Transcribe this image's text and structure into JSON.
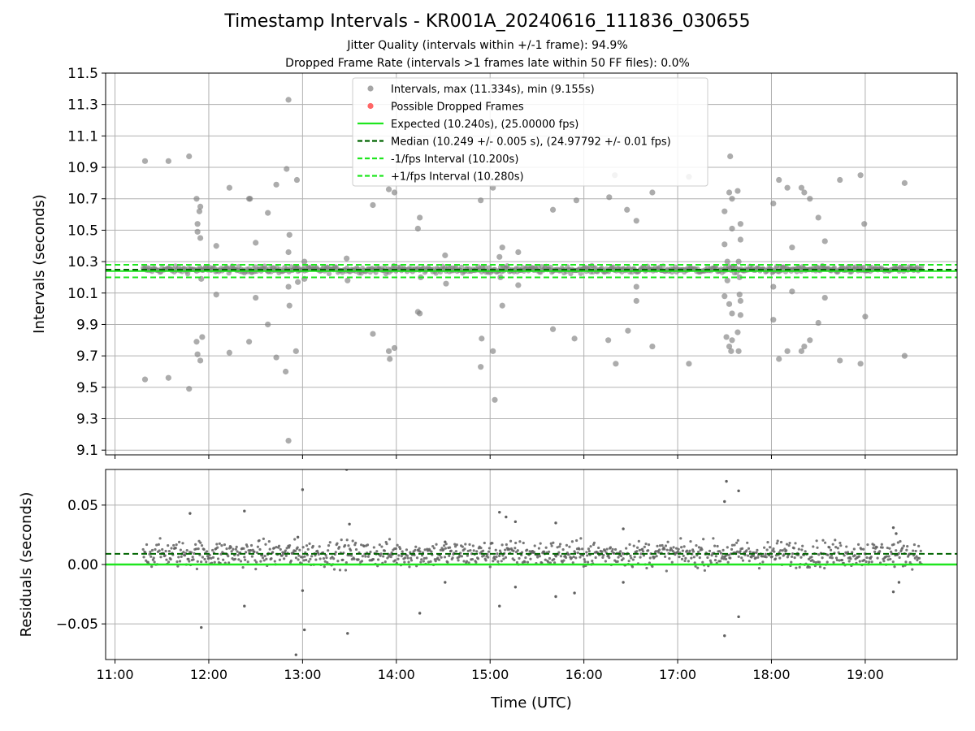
{
  "figure": {
    "title": "Timestamp Intervals - KR001A_20240616_111836_030655",
    "subtitle_1": "Jitter Quality (intervals within +/-1 frame): 94.9%",
    "subtitle_2": "Dropped Frame Rate (intervals >1 frames late within 50 FF files): 0.0%",
    "xlabel": "Time (UTC)"
  },
  "colors": {
    "points": "#808080",
    "dropped": "#ff4d4d",
    "expected": "#1ee61e",
    "median": "#006400",
    "bounds": "#1ee61e",
    "grid": "#b0b0b0"
  },
  "chart_data": [
    {
      "type": "scatter",
      "ylabel": "Intervals (seconds)",
      "xlim_hours": [
        10.9,
        19.98
      ],
      "ylim": [
        9.07,
        11.5
      ],
      "x_ticks": [
        "11:00",
        "12:00",
        "13:00",
        "14:00",
        "15:00",
        "16:00",
        "17:00",
        "18:00",
        "19:00"
      ],
      "y_ticks": [
        "9.1",
        "9.3",
        "9.5",
        "9.7",
        "9.9",
        "10.1",
        "10.3",
        "10.5",
        "10.7",
        "10.9",
        "11.1",
        "11.3",
        "11.5"
      ],
      "grid": true,
      "legend_position": "upper-center",
      "legend": [
        {
          "label": "Intervals, max (11.334s), min (9.155s)",
          "kind": "marker",
          "color": "#a6a6a6"
        },
        {
          "label": "Possible Dropped Frames",
          "kind": "marker",
          "color": "#ff6666"
        },
        {
          "label": "Expected (10.240s), (25.00000 fps)",
          "kind": "solid",
          "color": "#1ee61e"
        },
        {
          "label": "Median (10.249 +/- 0.005 s), (24.97792 +/- 0.01 fps)",
          "kind": "dashed",
          "color": "#006400"
        },
        {
          "label": "-1/fps Interval (10.200s)",
          "kind": "dashed",
          "color": "#1ee61e"
        },
        {
          "label": "+1/fps Interval (10.280s)",
          "kind": "dashed",
          "color": "#1ee61e"
        }
      ],
      "x_range_hours": [
        11.3,
        19.6
      ],
      "core_band": [
        10.2,
        10.28
      ],
      "expected": 10.24,
      "median": 10.249,
      "lower_bound": 10.2,
      "upper_bound": 10.28,
      "max": 11.334,
      "min": 9.155,
      "outliers": [
        [
          11.32,
          10.94
        ],
        [
          11.32,
          9.55
        ],
        [
          11.57,
          10.94
        ],
        [
          11.57,
          9.56
        ],
        [
          11.79,
          10.97
        ],
        [
          11.79,
          9.49
        ],
        [
          11.87,
          10.7
        ],
        [
          11.88,
          10.54
        ],
        [
          11.88,
          10.49
        ],
        [
          11.9,
          10.62
        ],
        [
          11.91,
          10.65
        ],
        [
          11.91,
          10.45
        ],
        [
          11.92,
          10.19
        ],
        [
          11.87,
          9.79
        ],
        [
          11.93,
          9.82
        ],
        [
          11.88,
          9.71
        ],
        [
          11.91,
          9.67
        ],
        [
          12.08,
          10.4
        ],
        [
          12.08,
          10.09
        ],
        [
          12.22,
          10.77
        ],
        [
          12.22,
          9.72
        ],
        [
          12.43,
          10.7
        ],
        [
          12.44,
          10.7
        ],
        [
          12.5,
          10.42
        ],
        [
          12.5,
          10.07
        ],
        [
          12.43,
          9.79
        ],
        [
          12.63,
          10.61
        ],
        [
          12.63,
          9.9
        ],
        [
          12.72,
          10.79
        ],
        [
          12.72,
          9.69
        ],
        [
          12.83,
          10.89
        ],
        [
          12.85,
          11.33
        ],
        [
          12.86,
          10.47
        ],
        [
          12.85,
          10.36
        ],
        [
          12.85,
          10.14
        ],
        [
          12.86,
          10.02
        ],
        [
          12.82,
          9.6
        ],
        [
          12.85,
          9.16
        ],
        [
          12.94,
          10.82
        ],
        [
          12.95,
          10.26
        ],
        [
          12.95,
          10.17
        ],
        [
          12.93,
          9.73
        ],
        [
          13.02,
          10.3
        ],
        [
          13.02,
          10.19
        ],
        [
          13.47,
          10.32
        ],
        [
          13.48,
          10.18
        ],
        [
          13.75,
          10.66
        ],
        [
          13.75,
          9.84
        ],
        [
          13.92,
          10.76
        ],
        [
          13.98,
          10.74
        ],
        [
          13.92,
          9.73
        ],
        [
          13.93,
          9.68
        ],
        [
          13.98,
          9.75
        ],
        [
          14.23,
          10.51
        ],
        [
          14.25,
          10.58
        ],
        [
          14.26,
          10.2
        ],
        [
          14.23,
          9.98
        ],
        [
          14.25,
          9.97
        ],
        [
          14.52,
          10.34
        ],
        [
          14.53,
          10.16
        ],
        [
          14.9,
          10.69
        ],
        [
          14.91,
          9.81
        ],
        [
          14.9,
          9.63
        ],
        [
          15.03,
          10.77
        ],
        [
          15.03,
          9.73
        ],
        [
          15.05,
          9.42
        ],
        [
          15.1,
          10.33
        ],
        [
          15.13,
          10.39
        ],
        [
          15.11,
          10.2
        ],
        [
          15.13,
          10.02
        ],
        [
          15.3,
          10.36
        ],
        [
          15.3,
          10.15
        ],
        [
          15.67,
          10.63
        ],
        [
          15.67,
          9.87
        ],
        [
          15.92,
          10.69
        ],
        [
          15.9,
          9.81
        ],
        [
          16.27,
          10.71
        ],
        [
          16.33,
          10.85
        ],
        [
          16.26,
          9.8
        ],
        [
          16.34,
          9.65
        ],
        [
          16.46,
          10.63
        ],
        [
          16.47,
          9.86
        ],
        [
          16.56,
          10.56
        ],
        [
          16.56,
          10.14
        ],
        [
          16.56,
          10.05
        ],
        [
          16.73,
          10.74
        ],
        [
          16.73,
          9.76
        ],
        [
          17.12,
          10.84
        ],
        [
          17.12,
          9.65
        ],
        [
          17.5,
          10.62
        ],
        [
          17.5,
          10.41
        ],
        [
          17.5,
          10.08
        ],
        [
          17.53,
          10.3
        ],
        [
          17.53,
          10.18
        ],
        [
          17.55,
          10.74
        ],
        [
          17.56,
          10.97
        ],
        [
          17.58,
          10.7
        ],
        [
          17.58,
          10.51
        ],
        [
          17.55,
          10.03
        ],
        [
          17.58,
          9.97
        ],
        [
          17.52,
          9.82
        ],
        [
          17.55,
          9.76
        ],
        [
          17.57,
          9.73
        ],
        [
          17.58,
          9.8
        ],
        [
          17.64,
          10.75
        ],
        [
          17.65,
          10.3
        ],
        [
          17.66,
          10.2
        ],
        [
          17.66,
          10.09
        ],
        [
          17.64,
          9.85
        ],
        [
          17.65,
          9.73
        ],
        [
          17.67,
          10.54
        ],
        [
          17.67,
          10.44
        ],
        [
          17.67,
          10.05
        ],
        [
          17.67,
          9.96
        ],
        [
          18.02,
          10.67
        ],
        [
          18.02,
          10.14
        ],
        [
          18.02,
          9.93
        ],
        [
          18.08,
          10.82
        ],
        [
          18.08,
          9.68
        ],
        [
          18.17,
          10.77
        ],
        [
          18.17,
          9.73
        ],
        [
          18.22,
          10.39
        ],
        [
          18.22,
          10.11
        ],
        [
          18.32,
          10.77
        ],
        [
          18.35,
          10.74
        ],
        [
          18.32,
          9.73
        ],
        [
          18.35,
          9.76
        ],
        [
          18.41,
          10.7
        ],
        [
          18.41,
          9.8
        ],
        [
          18.5,
          10.58
        ],
        [
          18.5,
          9.91
        ],
        [
          18.57,
          10.43
        ],
        [
          18.57,
          10.07
        ],
        [
          18.73,
          10.82
        ],
        [
          18.73,
          9.67
        ],
        [
          18.95,
          10.85
        ],
        [
          18.95,
          9.65
        ],
        [
          18.99,
          10.54
        ],
        [
          19.0,
          9.95
        ],
        [
          19.42,
          10.8
        ],
        [
          19.42,
          9.7
        ]
      ],
      "possible_dropped_frames": []
    },
    {
      "type": "scatter",
      "ylabel": "Residuals (seconds)",
      "xlim_hours": [
        10.9,
        19.98
      ],
      "ylim": [
        -0.08,
        0.08
      ],
      "x_ticks": [
        "11:00",
        "12:00",
        "13:00",
        "14:00",
        "15:00",
        "16:00",
        "17:00",
        "18:00",
        "19:00"
      ],
      "y_ticks": [
        "−0.05",
        "0.00",
        "0.05"
      ],
      "grid": true,
      "zero_line": 0.0,
      "median_line": 0.009,
      "x_range_hours": [
        11.3,
        19.6
      ],
      "core_band": [
        -0.012,
        0.022
      ],
      "outliers": [
        [
          11.8,
          0.043
        ],
        [
          11.92,
          -0.053
        ],
        [
          12.38,
          0.045
        ],
        [
          12.38,
          -0.035
        ],
        [
          12.95,
          0.023
        ],
        [
          13.0,
          0.063
        ],
        [
          13.0,
          -0.022
        ],
        [
          13.02,
          -0.055
        ],
        [
          12.93,
          -0.076
        ],
        [
          13.47,
          0.08
        ],
        [
          13.5,
          0.034
        ],
        [
          13.48,
          -0.058
        ],
        [
          14.25,
          -0.041
        ],
        [
          14.52,
          0.019
        ],
        [
          14.52,
          -0.015
        ],
        [
          15.1,
          0.044
        ],
        [
          15.1,
          -0.035
        ],
        [
          15.17,
          0.04
        ],
        [
          15.27,
          0.036
        ],
        [
          15.27,
          -0.019
        ],
        [
          15.7,
          0.035
        ],
        [
          15.7,
          -0.027
        ],
        [
          15.9,
          -0.024
        ],
        [
          16.42,
          0.03
        ],
        [
          16.42,
          -0.015
        ],
        [
          17.5,
          0.053
        ],
        [
          17.52,
          0.07
        ],
        [
          17.5,
          -0.06
        ],
        [
          17.65,
          0.062
        ],
        [
          17.65,
          -0.044
        ],
        [
          19.3,
          0.031
        ],
        [
          19.33,
          0.026
        ],
        [
          19.3,
          -0.023
        ],
        [
          19.36,
          -0.015
        ]
      ]
    }
  ]
}
